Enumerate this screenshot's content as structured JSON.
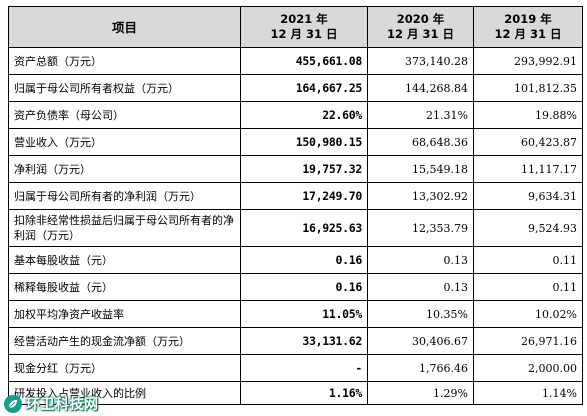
{
  "table": {
    "headers": {
      "item": "项目",
      "y2021_line1": "2021 年",
      "y2021_line2": "12 月 31 日",
      "y2020_line1": "2020 年",
      "y2020_line2": "12 月 31 日",
      "y2019_line1": "2019 年",
      "y2019_line2": "12 月 31 日"
    },
    "rows": [
      {
        "item": "资产总额（万元）",
        "v2021": "455,661.08",
        "v2020": "373,140.28",
        "v2019": "293,992.91"
      },
      {
        "item": "归属于母公司所有者权益（万元）",
        "v2021": "164,667.25",
        "v2020": "144,268.84",
        "v2019": "101,812.35"
      },
      {
        "item": "资产负债率（母公司）",
        "v2021": "22.60%",
        "v2020": "21.31%",
        "v2019": "19.88%"
      },
      {
        "item": "营业收入（万元）",
        "v2021": "150,980.15",
        "v2020": "68,648.36",
        "v2019": "60,423.87"
      },
      {
        "item": "净利润（万元）",
        "v2021": "19,757.32",
        "v2020": "15,549.18",
        "v2019": "11,117.17"
      },
      {
        "item": "归属于母公司所有者的净利润（万元）",
        "v2021": "17,249.70",
        "v2020": "13,302.92",
        "v2019": "9,634.31"
      },
      {
        "item": "扣除非经常性损益后归属于母公司所有者的净利润（万元）",
        "v2021": "16,925.63",
        "v2020": "12,353.79",
        "v2019": "9,524.93"
      },
      {
        "item": "基本每股收益（元）",
        "v2021": "0.16",
        "v2020": "0.13",
        "v2019": "0.11"
      },
      {
        "item": "稀释每股收益（元）",
        "v2021": "0.16",
        "v2020": "0.13",
        "v2019": "0.11"
      },
      {
        "item": "加权平均净资产收益率",
        "v2021": "11.05%",
        "v2020": "10.35%",
        "v2019": "10.02%"
      },
      {
        "item": "经营活动产生的现金流净额（万元）",
        "v2021": "33,131.62",
        "v2020": "30,406.67",
        "v2019": "26,971.16"
      },
      {
        "item": "现金分红（万元）",
        "v2021": "-",
        "v2020": "1,766.46",
        "v2019": "2,000.00"
      },
      {
        "item": "研发投入占营业收入的比例",
        "v2021": "1.16%",
        "v2020": "1.29%",
        "v2019": "1.14%"
      }
    ]
  },
  "watermark": {
    "text": "环卫科技网",
    "logo_color": "#1a9c8f"
  },
  "colors": {
    "header_bg": "#d9d9d9",
    "border": "#000000"
  }
}
